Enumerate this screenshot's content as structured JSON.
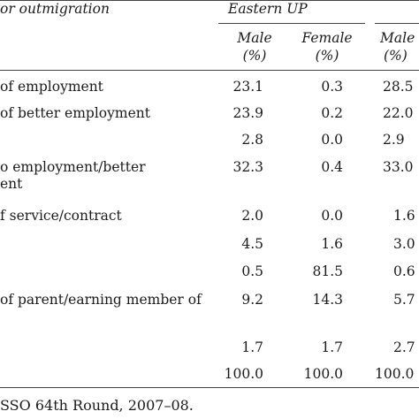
{
  "table": {
    "stub_header": "or outmigration",
    "group_header": "Eastern UP",
    "sub_headers": {
      "male_1": [
        "Male",
        "(%)"
      ],
      "female_1": [
        "Female",
        "(%)"
      ],
      "male_2": [
        "Male",
        "(%)"
      ]
    },
    "rows": [
      {
        "label": [
          "of employment"
        ],
        "male_1": "23.1",
        "female_1": "0.3",
        "male_2": "28.5"
      },
      {
        "label": [
          "of better employment"
        ],
        "male_1": "23.9",
        "female_1": "0.2",
        "male_2": "22.0"
      },
      {
        "label": [
          ""
        ],
        "male_1": "2.8",
        "female_1": "0.0",
        "male_2": "2.9"
      },
      {
        "label": [
          "o employment/better",
          "ent"
        ],
        "male_1": "32.3",
        "female_1": "0.4",
        "male_2": "33.0"
      },
      {
        "label": [
          "f service/contract"
        ],
        "male_1": "2.0",
        "female_1": "0.0",
        "male_2": "1.6"
      },
      {
        "label": [
          ""
        ],
        "male_1": "4.5",
        "female_1": "1.6",
        "male_2": "3.0"
      },
      {
        "label": [
          ""
        ],
        "male_1": "0.5",
        "female_1": "81.5",
        "male_2": "0.6"
      },
      {
        "label": [
          "of parent/earning member of"
        ],
        "male_1": "9.2",
        "female_1": "14.3",
        "male_2": "5.7"
      },
      {
        "label": [
          ""
        ],
        "male_1": "1.7",
        "female_1": "1.7",
        "male_2": "2.7"
      },
      {
        "label": [
          ""
        ],
        "male_1": "100.0",
        "female_1": "100.0",
        "male_2": "100.0"
      }
    ],
    "source_note": "SSO 64th Round, 2007–08."
  }
}
